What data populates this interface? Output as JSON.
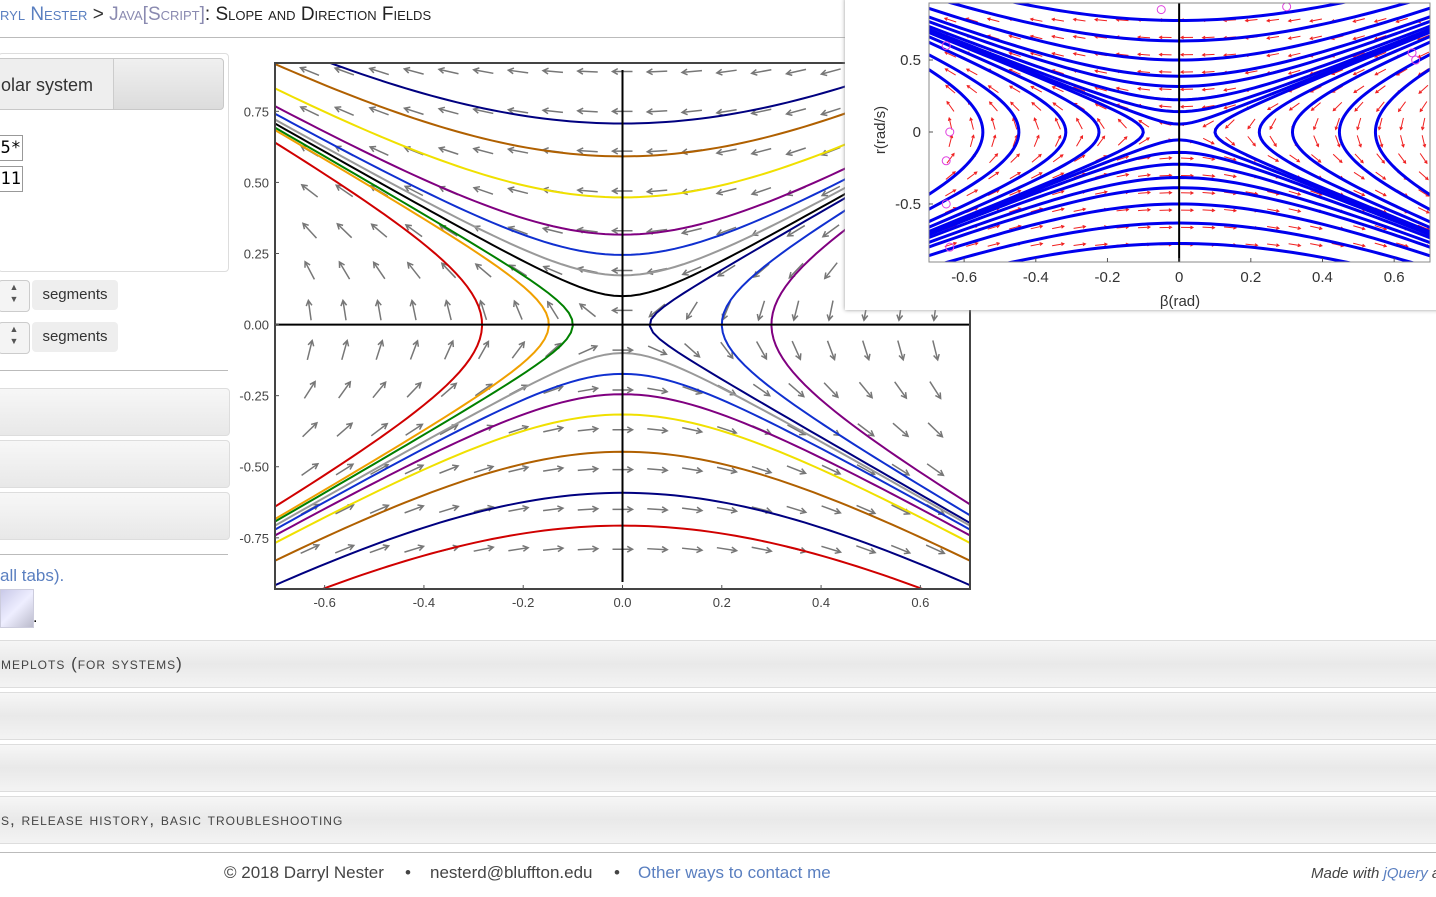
{
  "header": {
    "crumb": "ryl Nester",
    "sep": ">",
    "section": "Java[Script]",
    "title": ": Slope and Direction Fields"
  },
  "left_panel": {
    "button": "olar system",
    "inputs": [
      "5*",
      "11"
    ],
    "spinners": [
      "segments",
      "segments"
    ],
    "link": "all tabs)",
    "link_end": ".",
    "thumb_end": "."
  },
  "plot": {
    "xlim": [
      -0.7,
      0.7
    ],
    "ylim": [
      -0.93,
      0.92
    ],
    "xticks": [
      -0.6,
      -0.4,
      -0.2,
      {
        "value": 0,
        "label": "0.0"
      },
      0.2,
      0.4,
      0.6
    ],
    "yticks": [
      0.75,
      {
        "value": 0.5,
        "label": "0.50"
      },
      {
        "value": 0.25,
        "label": "0.25"
      },
      {
        "value": 0,
        "label": "0.00"
      },
      -0.25,
      {
        "value": -0.5,
        "label": "-0.50"
      },
      -0.75
    ]
  },
  "inset": {
    "xlim": [
      -0.698,
      0.7
    ],
    "ylim": [
      -0.903,
      0.896
    ],
    "xticks": [
      -0.6,
      -0.4,
      -0.2,
      0,
      0.2,
      0.4,
      0.6
    ],
    "yticks": [
      0.5,
      0,
      -0.5
    ],
    "xlabel": "β(rad)",
    "ylabel": "r(rad/s)"
  },
  "accordion": [
    "meplots (for systems)",
    "s, release history, basic troubleshooting"
  ],
  "footer": {
    "copyright": "© 2018 Darryl Nester",
    "dot1": "•",
    "email": "nesterd@bluffton.edu",
    "dot2": "•",
    "contact": "Other ways to contact me",
    "made": "Made with",
    "jquery": "jQuery",
    "tail": "a"
  }
}
